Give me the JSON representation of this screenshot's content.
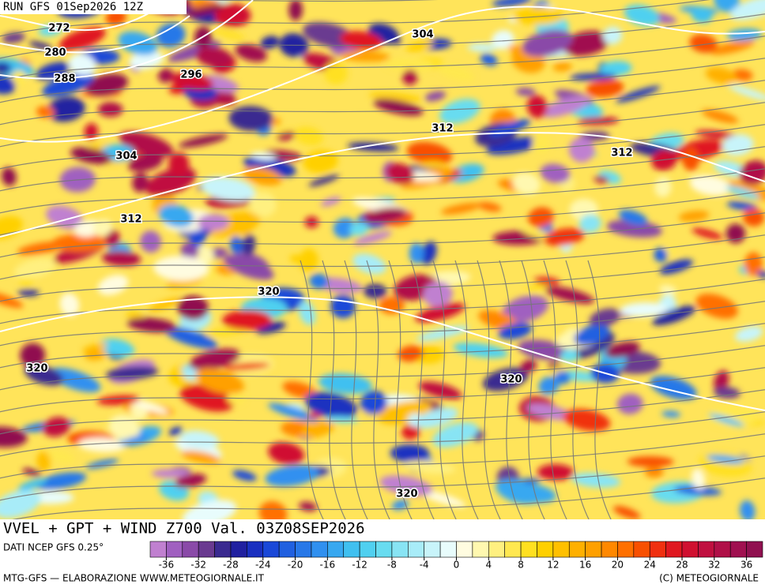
{
  "header": {
    "run": "RUN GFS 01Sep2026 12Z"
  },
  "title": "VVEL + GPT + WIND Z700 Val. 03Z08SEP2026",
  "source": "DATI NCEP GFS 0.25°",
  "footer": {
    "left": "MTG-GFS — ELABORAZIONE WWW.METEOGIORNALE.IT",
    "right": "(C) METEOGIORNALE"
  },
  "contour_labels": [
    "272",
    "280",
    "288",
    "296",
    "304",
    "312",
    "304",
    "312",
    "312",
    "320",
    "320",
    "320",
    "320"
  ],
  "colorbar": {
    "range": [
      -38,
      38
    ],
    "colors": [
      "#c080d0",
      "#a060c0",
      "#8a4aa8",
      "#6a3a90",
      "#3a2a90",
      "#2020a0",
      "#1a30c0",
      "#1a48d8",
      "#2060e0",
      "#2878e8",
      "#3090f0",
      "#38a8f0",
      "#40c0f0",
      "#50d0f0",
      "#68dcf0",
      "#88e4f4",
      "#a8ecf8",
      "#c8f4fa",
      "#e8fcfc",
      "#fffce0",
      "#fff8b0",
      "#fff080",
      "#ffe850",
      "#ffe020",
      "#ffd000",
      "#ffc000",
      "#ffb000",
      "#ffa000",
      "#ff8800",
      "#ff7000",
      "#f85000",
      "#f03010",
      "#e01820",
      "#d01030",
      "#c01040",
      "#b01048",
      "#a01050",
      "#901050"
    ],
    "ticks": [
      -36,
      -32,
      -28,
      -24,
      -20,
      -16,
      -12,
      -8,
      -4,
      0,
      4,
      8,
      12,
      16,
      20,
      24,
      28,
      32,
      36
    ]
  }
}
